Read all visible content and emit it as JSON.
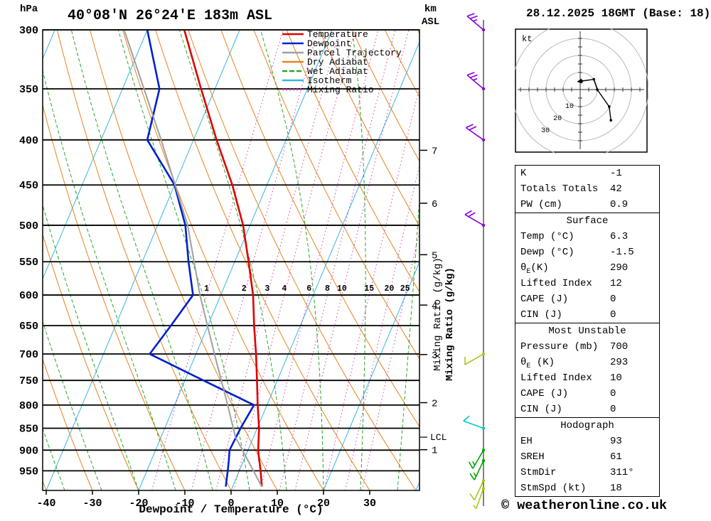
{
  "header": {
    "pressure_unit": "hPa",
    "title": "40°08'N 26°24'E 183m ASL",
    "altitude_unit_top": "km",
    "altitude_unit_bottom": "ASL",
    "date_title": "28.12.2025 18GMT (Base: 18)"
  },
  "legend": {
    "items": [
      {
        "label": "Temperature",
        "color": "#e00000",
        "dash": "none"
      },
      {
        "label": "Dewpoint",
        "color": "#0020cc",
        "dash": "none"
      },
      {
        "label": "Parcel Trajectory",
        "color": "#a0a0a0",
        "dash": "none"
      },
      {
        "label": "Dry Adiabat",
        "color": "#e8821e",
        "dash": "none"
      },
      {
        "label": "Wet Adiabat",
        "color": "#28a828",
        "dash": "dashed"
      },
      {
        "label": "Isotherm",
        "color": "#38b4e4",
        "dash": "none"
      },
      {
        "label": "Mixing Ratio",
        "color": "#d63ab0",
        "dash": "dotted"
      }
    ]
  },
  "axes": {
    "x_axis_label": "Dewpoint / Temperature (°C)",
    "mixing_ratio_axis_label": "Mixing Ratio (g/kg)",
    "lcl_label": "LCL"
  },
  "colors": {
    "isotherm": "#38b4e4",
    "dry_adiabat": "#e8821e",
    "wet_adiabat": "#28a828",
    "mixing_ratio": "#d63ab0",
    "mixing_ratio_axis_pink": "#eeaad6",
    "grid": "#000000"
  },
  "chart_data": {
    "type": "line",
    "title": "Skew-T log-P sounding for 40°08'N 26°24'E 183m ASL, 28.12.2025 18GMT",
    "x_axis": {
      "label": "Dewpoint / Temperature (°C)",
      "min": -40,
      "max": 40,
      "ticks": [
        -40,
        -30,
        -20,
        -10,
        0,
        10,
        20,
        30
      ]
    },
    "y_axis": {
      "label": "hPa",
      "scale": "log",
      "min": 300,
      "max": 1000,
      "ticks": [
        300,
        350,
        400,
        450,
        500,
        550,
        600,
        650,
        700,
        750,
        800,
        850,
        900,
        950
      ]
    },
    "km_ticks": [
      {
        "km": 1,
        "p": 899
      },
      {
        "km": 2,
        "p": 795
      },
      {
        "km": 3,
        "p": 701
      },
      {
        "km": 4,
        "p": 616
      },
      {
        "km": 5,
        "p": 540
      },
      {
        "km": 6,
        "p": 472
      },
      {
        "km": 7,
        "p": 411
      }
    ],
    "mixing_ratio_lines_g_per_kg": [
      1,
      2,
      3,
      4,
      6,
      8,
      10,
      15,
      20,
      25
    ],
    "lcl_pressure_hpa": 870,
    "series": [
      {
        "name": "Temperature",
        "color": "#e00000",
        "points": [
          [
            990,
            6.3
          ],
          [
            950,
            4.6
          ],
          [
            925,
            3.4
          ],
          [
            900,
            2.2
          ],
          [
            850,
            0.4
          ],
          [
            800,
            -2.0
          ],
          [
            750,
            -4.4
          ],
          [
            700,
            -7.0
          ],
          [
            650,
            -10.0
          ],
          [
            600,
            -13.0
          ],
          [
            550,
            -17.0
          ],
          [
            500,
            -21.5
          ],
          [
            450,
            -27.5
          ],
          [
            400,
            -35.0
          ],
          [
            350,
            -43.0
          ],
          [
            300,
            -52.0
          ]
        ]
      },
      {
        "name": "Dewpoint",
        "color": "#0020cc",
        "points": [
          [
            990,
            -1.5
          ],
          [
            950,
            -2.5
          ],
          [
            925,
            -3.2
          ],
          [
            900,
            -4.0
          ],
          [
            850,
            -3.6
          ],
          [
            800,
            -2.8
          ],
          [
            750,
            -16.0
          ],
          [
            700,
            -30.0
          ],
          [
            650,
            -28.0
          ],
          [
            600,
            -26.0
          ],
          [
            550,
            -30.0
          ],
          [
            500,
            -34.0
          ],
          [
            450,
            -40.0
          ],
          [
            400,
            -50.0
          ],
          [
            350,
            -52.0
          ],
          [
            300,
            -60.0
          ]
        ]
      },
      {
        "name": "Parcel Trajectory",
        "color": "#a0a0a0",
        "points": [
          [
            990,
            6.3
          ],
          [
            900,
            -1.2
          ],
          [
            870,
            -3.9
          ],
          [
            800,
            -8.5
          ],
          [
            700,
            -16.0
          ],
          [
            600,
            -24.5
          ],
          [
            500,
            -33.5
          ],
          [
            400,
            -47.0
          ],
          [
            300,
            -65.0
          ]
        ]
      }
    ],
    "wind_barbs": [
      {
        "p": 300,
        "speed_kt": 25,
        "dir_deg": 310,
        "color": "#8800dd"
      },
      {
        "p": 350,
        "speed_kt": 25,
        "dir_deg": 310,
        "color": "#8800dd"
      },
      {
        "p": 400,
        "speed_kt": 20,
        "dir_deg": 305,
        "color": "#8800dd"
      },
      {
        "p": 500,
        "speed_kt": 20,
        "dir_deg": 300,
        "color": "#8800dd"
      },
      {
        "p": 700,
        "speed_kt": 10,
        "dir_deg": 240,
        "color": "#a8c814"
      },
      {
        "p": 850,
        "speed_kt": 10,
        "dir_deg": 290,
        "color": "#00c8c8"
      },
      {
        "p": 900,
        "speed_kt": 15,
        "dir_deg": 210,
        "color": "#00a800"
      },
      {
        "p": 925,
        "speed_kt": 15,
        "dir_deg": 205,
        "color": "#00a800"
      },
      {
        "p": 975,
        "speed_kt": 10,
        "dir_deg": 205,
        "color": "#a8c814"
      },
      {
        "p": 995,
        "speed_kt": 5,
        "dir_deg": 200,
        "color": "#a8c814"
      }
    ]
  },
  "hodograph": {
    "unit_label": "kt",
    "ring_radii_kt": [
      10,
      20,
      30,
      40
    ],
    "ring_labels": [
      "10",
      "20",
      "30"
    ],
    "trace_uv_kt": [
      [
        1,
        5
      ],
      [
        8,
        6
      ],
      [
        10,
        0
      ],
      [
        17,
        -10
      ],
      [
        18,
        -18
      ]
    ],
    "storm_motion": {
      "dir_deg": 311,
      "speed_kt": 18
    }
  },
  "table": {
    "top_rows": [
      [
        "K",
        "-1"
      ],
      [
        "Totals Totals",
        "42"
      ],
      [
        "PW (cm)",
        "0.9"
      ]
    ],
    "sections": [
      {
        "header": "Surface",
        "rows": [
          [
            "Temp (°C)",
            "6.3"
          ],
          [
            "Dewp (°C)",
            "-1.5"
          ],
          [
            "θE(K)",
            "290"
          ],
          [
            "Lifted Index",
            "12"
          ],
          [
            "CAPE (J)",
            "0"
          ],
          [
            "CIN (J)",
            "0"
          ]
        ]
      },
      {
        "header": "Most Unstable",
        "rows": [
          [
            "Pressure (mb)",
            "700"
          ],
          [
            "θE (K)",
            "293"
          ],
          [
            "Lifted Index",
            "10"
          ],
          [
            "CAPE (J)",
            "0"
          ],
          [
            "CIN (J)",
            "0"
          ]
        ]
      },
      {
        "header": "Hodograph",
        "rows": [
          [
            "EH",
            "93"
          ],
          [
            "SREH",
            "61"
          ],
          [
            "StmDir",
            "311°"
          ],
          [
            "StmSpd (kt)",
            "18"
          ]
        ]
      }
    ]
  },
  "footer": {
    "copyright": "© weatheronline.co.uk"
  }
}
